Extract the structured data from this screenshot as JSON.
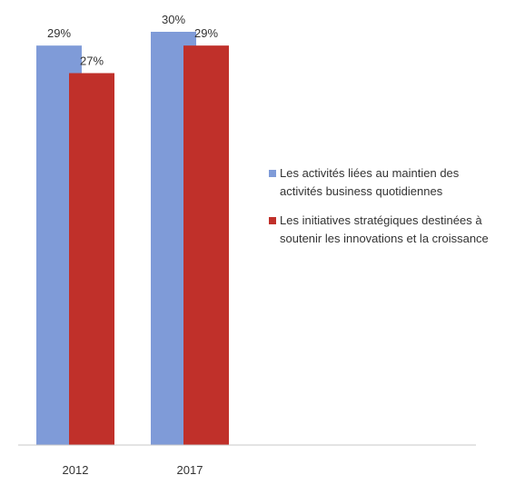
{
  "chart_data": {
    "type": "bar",
    "title": "",
    "xlabel": "",
    "ylabel": "",
    "categories": [
      "2012",
      "2017"
    ],
    "series": [
      {
        "name": "Les activités liées au maintien des activités business quotidiennes",
        "color": "#7f9bd8",
        "values": [
          29,
          30
        ],
        "labels": [
          "29%",
          "30%"
        ]
      },
      {
        "name": "Les initiatives stratégiques destinées à soutenir les innovations et la croissance",
        "color": "#c0302a",
        "values": [
          27,
          29
        ],
        "labels": [
          "27%",
          "29%"
        ]
      }
    ],
    "ylim": [
      0,
      30
    ],
    "grid": false,
    "legend": "right"
  }
}
